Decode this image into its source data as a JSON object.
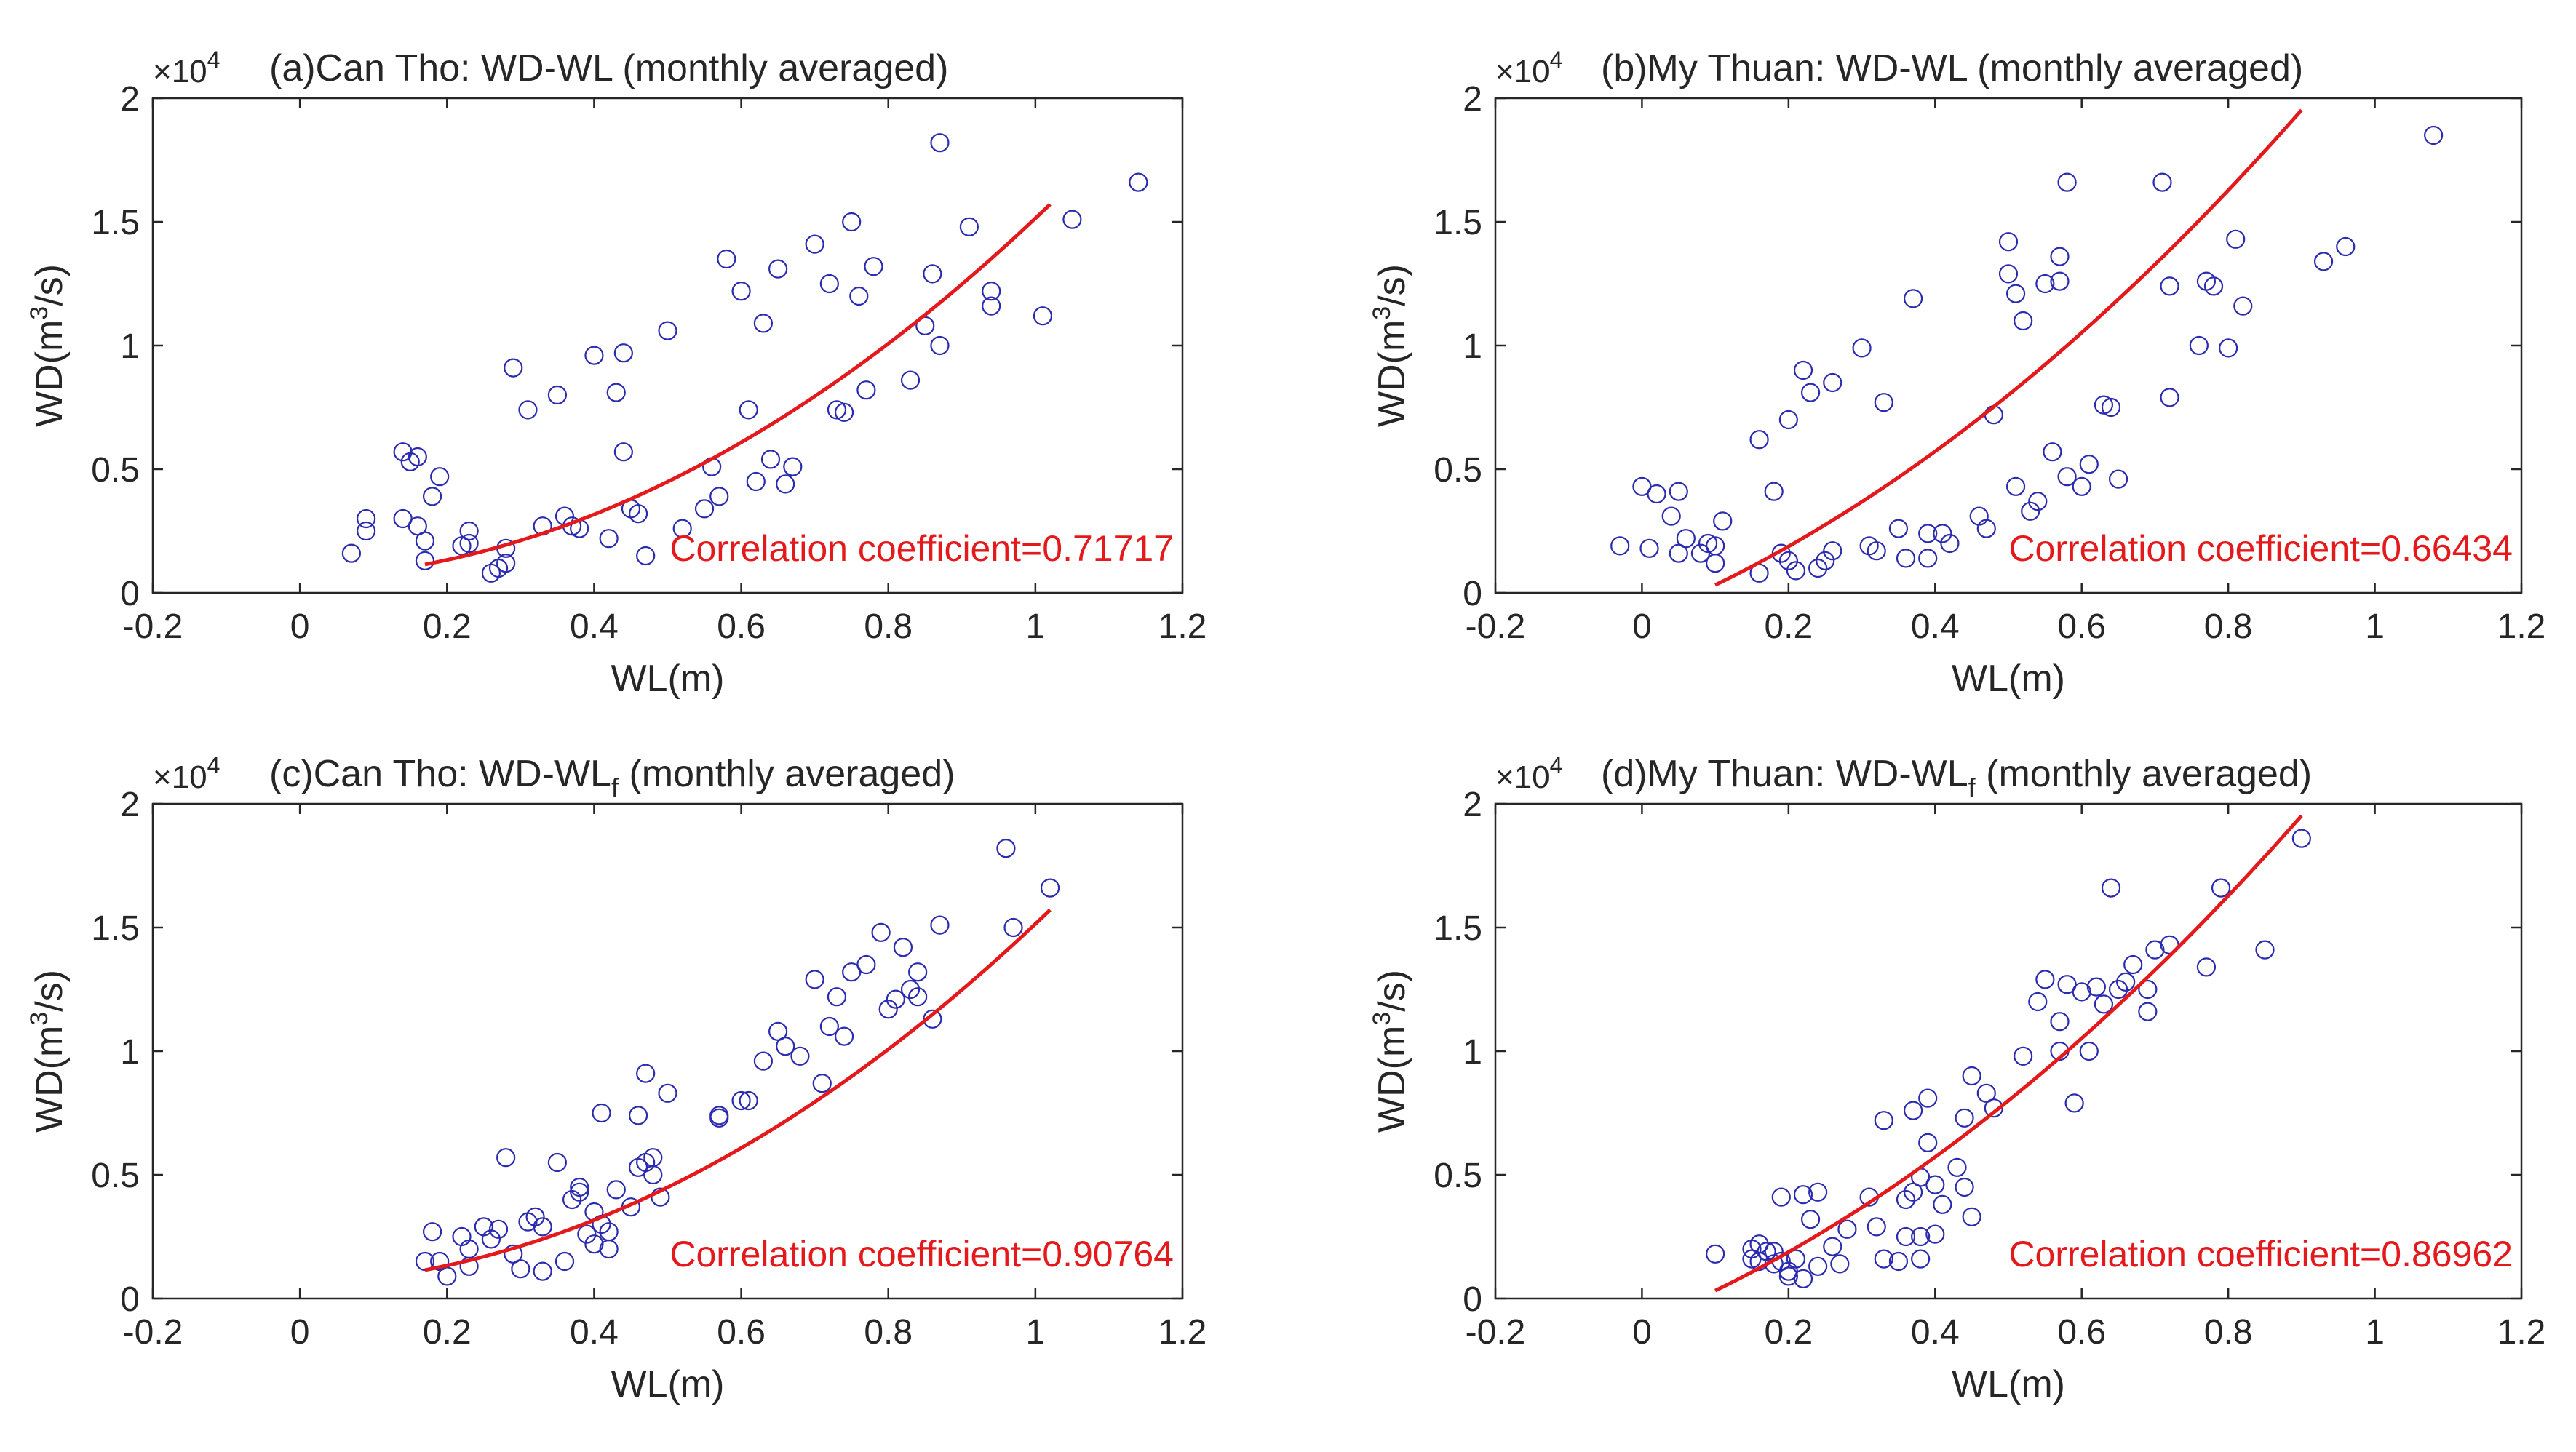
{
  "colors": {
    "marker": "#2b2bb0",
    "fit": "#e3191c",
    "axis": "#262626"
  },
  "chart_data": [
    {
      "type": "scatter",
      "title_text": "(a)Can Tho: WD-WL (monthly averaged)",
      "title_subscript": "",
      "title_after": "",
      "xlabel": "WL(m)",
      "ylabel_prefix": "WD(m",
      "ylabel_sup": "3",
      "ylabel_suffix": "/s)",
      "multiplier_base": "×10",
      "multiplier_exp": "4",
      "xlim": [
        -0.2,
        1.2
      ],
      "ylim": [
        0,
        2
      ],
      "xticks": [
        "-0.2",
        "0",
        "0.2",
        "0.4",
        "0.6",
        "0.8",
        "1",
        "1.2"
      ],
      "yticks": [
        "0",
        "0.5",
        "1",
        "1.5",
        "2"
      ],
      "correlation_label": "Correlation coefficient=0.71717",
      "points": [
        [
          0.07,
          0.16
        ],
        [
          0.09,
          0.25
        ],
        [
          0.09,
          0.3
        ],
        [
          0.14,
          0.3
        ],
        [
          0.14,
          0.57
        ],
        [
          0.15,
          0.53
        ],
        [
          0.16,
          0.55
        ],
        [
          0.16,
          0.27
        ],
        [
          0.17,
          0.21
        ],
        [
          0.17,
          0.13
        ],
        [
          0.18,
          0.39
        ],
        [
          0.19,
          0.47
        ],
        [
          0.22,
          0.19
        ],
        [
          0.23,
          0.25
        ],
        [
          0.23,
          0.2
        ],
        [
          0.26,
          0.08
        ],
        [
          0.27,
          0.1
        ],
        [
          0.28,
          0.12
        ],
        [
          0.28,
          0.18
        ],
        [
          0.29,
          0.91
        ],
        [
          0.31,
          0.74
        ],
        [
          0.33,
          0.27
        ],
        [
          0.35,
          0.8
        ],
        [
          0.36,
          0.31
        ],
        [
          0.37,
          0.27
        ],
        [
          0.38,
          0.26
        ],
        [
          0.4,
          0.96
        ],
        [
          0.42,
          0.22
        ],
        [
          0.43,
          0.81
        ],
        [
          0.44,
          0.97
        ],
        [
          0.44,
          0.57
        ],
        [
          0.45,
          0.34
        ],
        [
          0.46,
          0.32
        ],
        [
          0.47,
          0.15
        ],
        [
          0.5,
          1.06
        ],
        [
          0.52,
          0.26
        ],
        [
          0.55,
          0.34
        ],
        [
          0.56,
          0.51
        ],
        [
          0.57,
          0.39
        ],
        [
          0.58,
          1.35
        ],
        [
          0.6,
          1.22
        ],
        [
          0.61,
          0.74
        ],
        [
          0.62,
          0.45
        ],
        [
          0.63,
          1.09
        ],
        [
          0.64,
          0.54
        ],
        [
          0.65,
          1.31
        ],
        [
          0.66,
          0.44
        ],
        [
          0.67,
          0.51
        ],
        [
          0.7,
          1.41
        ],
        [
          0.72,
          1.25
        ],
        [
          0.73,
          0.74
        ],
        [
          0.74,
          0.73
        ],
        [
          0.75,
          1.5
        ],
        [
          0.76,
          1.2
        ],
        [
          0.77,
          0.82
        ],
        [
          0.78,
          1.32
        ],
        [
          0.83,
          0.86
        ],
        [
          0.85,
          1.08
        ],
        [
          0.86,
          1.29
        ],
        [
          0.87,
          1.82
        ],
        [
          0.87,
          1.0
        ],
        [
          0.91,
          1.48
        ],
        [
          0.94,
          1.22
        ],
        [
          0.94,
          1.16
        ],
        [
          1.01,
          1.12
        ],
        [
          1.05,
          1.51
        ],
        [
          1.14,
          1.66
        ]
      ],
      "fit_x": [
        0.17,
        1.02
      ],
      "fit_coeffs": [
        1.3467,
        0.1106,
        0.0573
      ]
    },
    {
      "type": "scatter",
      "title_text": "(b)My Thuan: WD-WL (monthly averaged)",
      "title_subscript": "",
      "title_after": "",
      "xlabel": "WL(m)",
      "ylabel_prefix": "WD(m",
      "ylabel_sup": "3",
      "ylabel_suffix": "/s)",
      "multiplier_base": "×10",
      "multiplier_exp": "4",
      "xlim": [
        -0.2,
        1.2
      ],
      "ylim": [
        0,
        2
      ],
      "xticks": [
        "-0.2",
        "0",
        "0.2",
        "0.4",
        "0.6",
        "0.8",
        "1",
        "1.2"
      ],
      "yticks": [
        "0",
        "0.5",
        "1",
        "1.5",
        "2"
      ],
      "correlation_label": "Correlation coefficient=0.66434",
      "points": [
        [
          -0.03,
          0.19
        ],
        [
          0.0,
          0.43
        ],
        [
          0.01,
          0.18
        ],
        [
          0.02,
          0.4
        ],
        [
          0.04,
          0.31
        ],
        [
          0.05,
          0.41
        ],
        [
          0.05,
          0.16
        ],
        [
          0.06,
          0.22
        ],
        [
          0.08,
          0.16
        ],
        [
          0.09,
          0.2
        ],
        [
          0.1,
          0.12
        ],
        [
          0.1,
          0.19
        ],
        [
          0.11,
          0.29
        ],
        [
          0.16,
          0.62
        ],
        [
          0.16,
          0.08
        ],
        [
          0.18,
          0.41
        ],
        [
          0.19,
          0.16
        ],
        [
          0.2,
          0.13
        ],
        [
          0.2,
          0.7
        ],
        [
          0.21,
          0.09
        ],
        [
          0.22,
          0.9
        ],
        [
          0.23,
          0.81
        ],
        [
          0.24,
          0.1
        ],
        [
          0.25,
          0.13
        ],
        [
          0.26,
          0.85
        ],
        [
          0.26,
          0.17
        ],
        [
          0.3,
          0.99
        ],
        [
          0.31,
          0.19
        ],
        [
          0.32,
          0.17
        ],
        [
          0.33,
          0.77
        ],
        [
          0.35,
          0.26
        ],
        [
          0.36,
          0.14
        ],
        [
          0.37,
          1.19
        ],
        [
          0.39,
          0.24
        ],
        [
          0.39,
          0.14
        ],
        [
          0.41,
          0.24
        ],
        [
          0.42,
          0.2
        ],
        [
          0.46,
          0.31
        ],
        [
          0.47,
          0.26
        ],
        [
          0.48,
          0.72
        ],
        [
          0.5,
          1.42
        ],
        [
          0.5,
          1.29
        ],
        [
          0.51,
          1.21
        ],
        [
          0.51,
          0.43
        ],
        [
          0.52,
          1.1
        ],
        [
          0.53,
          0.33
        ],
        [
          0.54,
          0.37
        ],
        [
          0.55,
          1.25
        ],
        [
          0.56,
          0.57
        ],
        [
          0.57,
          1.36
        ],
        [
          0.57,
          1.26
        ],
        [
          0.58,
          1.66
        ],
        [
          0.58,
          0.47
        ],
        [
          0.6,
          0.43
        ],
        [
          0.61,
          0.52
        ],
        [
          0.63,
          0.76
        ],
        [
          0.64,
          0.75
        ],
        [
          0.65,
          0.46
        ],
        [
          0.71,
          1.66
        ],
        [
          0.72,
          1.24
        ],
        [
          0.72,
          0.79
        ],
        [
          0.76,
          1.0
        ],
        [
          0.77,
          1.26
        ],
        [
          0.78,
          1.24
        ],
        [
          0.8,
          0.99
        ],
        [
          0.81,
          1.43
        ],
        [
          0.82,
          1.16
        ],
        [
          0.93,
          1.34
        ],
        [
          0.96,
          1.4
        ],
        [
          1.08,
          1.85
        ]
      ],
      "fit_x": [
        0.1,
        0.9
      ],
      "fit_coeffs": [
        1.2,
        1.2,
        -0.1
      ]
    },
    {
      "type": "scatter",
      "title_text": "(c)Can Tho: WD-WL",
      "title_subscript": "f",
      "title_after": " (monthly averaged)",
      "xlabel": "WL(m)",
      "ylabel_prefix": "WD(m",
      "ylabel_sup": "3",
      "ylabel_suffix": "/s)",
      "multiplier_base": "×10",
      "multiplier_exp": "4",
      "xlim": [
        -0.2,
        1.2
      ],
      "ylim": [
        0,
        2
      ],
      "xticks": [
        "-0.2",
        "0",
        "0.2",
        "0.4",
        "0.6",
        "0.8",
        "1",
        "1.2"
      ],
      "yticks": [
        "0",
        "0.5",
        "1",
        "1.5",
        "2"
      ],
      "correlation_label": "Correlation coefficient=0.90764",
      "points": [
        [
          0.17,
          0.15
        ],
        [
          0.18,
          0.27
        ],
        [
          0.19,
          0.15
        ],
        [
          0.2,
          0.09
        ],
        [
          0.22,
          0.25
        ],
        [
          0.23,
          0.13
        ],
        [
          0.23,
          0.2
        ],
        [
          0.25,
          0.29
        ],
        [
          0.26,
          0.24
        ],
        [
          0.27,
          0.28
        ],
        [
          0.28,
          0.57
        ],
        [
          0.29,
          0.18
        ],
        [
          0.3,
          0.12
        ],
        [
          0.31,
          0.31
        ],
        [
          0.32,
          0.33
        ],
        [
          0.33,
          0.29
        ],
        [
          0.33,
          0.11
        ],
        [
          0.35,
          0.55
        ],
        [
          0.36,
          0.15
        ],
        [
          0.37,
          0.4
        ],
        [
          0.38,
          0.43
        ],
        [
          0.38,
          0.45
        ],
        [
          0.39,
          0.26
        ],
        [
          0.4,
          0.22
        ],
        [
          0.4,
          0.35
        ],
        [
          0.41,
          0.75
        ],
        [
          0.41,
          0.3
        ],
        [
          0.42,
          0.27
        ],
        [
          0.42,
          0.2
        ],
        [
          0.43,
          0.44
        ],
        [
          0.45,
          0.37
        ],
        [
          0.46,
          0.74
        ],
        [
          0.46,
          0.53
        ],
        [
          0.47,
          0.91
        ],
        [
          0.47,
          0.55
        ],
        [
          0.48,
          0.57
        ],
        [
          0.48,
          0.5
        ],
        [
          0.49,
          0.41
        ],
        [
          0.5,
          0.83
        ],
        [
          0.57,
          0.73
        ],
        [
          0.57,
          0.74
        ],
        [
          0.6,
          0.8
        ],
        [
          0.61,
          0.8
        ],
        [
          0.63,
          0.96
        ],
        [
          0.65,
          1.08
        ],
        [
          0.66,
          1.02
        ],
        [
          0.68,
          0.98
        ],
        [
          0.7,
          1.29
        ],
        [
          0.71,
          0.87
        ],
        [
          0.72,
          1.1
        ],
        [
          0.73,
          1.22
        ],
        [
          0.74,
          1.06
        ],
        [
          0.75,
          1.32
        ],
        [
          0.77,
          1.35
        ],
        [
          0.79,
          1.48
        ],
        [
          0.8,
          1.17
        ],
        [
          0.81,
          1.21
        ],
        [
          0.82,
          1.42
        ],
        [
          0.83,
          1.25
        ],
        [
          0.84,
          1.32
        ],
        [
          0.84,
          1.22
        ],
        [
          0.86,
          1.13
        ],
        [
          0.87,
          1.51
        ],
        [
          0.96,
          1.82
        ],
        [
          0.97,
          1.5
        ],
        [
          1.02,
          1.66
        ]
      ],
      "fit_x": [
        0.17,
        1.02
      ],
      "fit_coeffs": [
        1.3467,
        0.1106,
        0.0573
      ]
    },
    {
      "type": "scatter",
      "title_text": "(d)My Thuan: WD-WL",
      "title_subscript": "f",
      "title_after": " (monthly averaged)",
      "xlabel": "WL(m)",
      "ylabel_prefix": "WD(m",
      "ylabel_sup": "3",
      "ylabel_suffix": "/s)",
      "multiplier_base": "×10",
      "multiplier_exp": "4",
      "xlim": [
        -0.2,
        1.2
      ],
      "ylim": [
        0,
        2
      ],
      "xticks": [
        "-0.2",
        "0",
        "0.2",
        "0.4",
        "0.6",
        "0.8",
        "1",
        "1.2"
      ],
      "yticks": [
        "0",
        "0.5",
        "1",
        "1.5",
        "2"
      ],
      "correlation_label": "Correlation coefficient=0.86962",
      "points": [
        [
          0.1,
          0.18
        ],
        [
          0.15,
          0.16
        ],
        [
          0.15,
          0.2
        ],
        [
          0.16,
          0.15
        ],
        [
          0.16,
          0.22
        ],
        [
          0.17,
          0.19
        ],
        [
          0.18,
          0.14
        ],
        [
          0.18,
          0.19
        ],
        [
          0.19,
          0.41
        ],
        [
          0.19,
          0.15
        ],
        [
          0.2,
          0.11
        ],
        [
          0.2,
          0.09
        ],
        [
          0.21,
          0.16
        ],
        [
          0.22,
          0.42
        ],
        [
          0.22,
          0.08
        ],
        [
          0.23,
          0.32
        ],
        [
          0.24,
          0.43
        ],
        [
          0.24,
          0.13
        ],
        [
          0.26,
          0.21
        ],
        [
          0.27,
          0.14
        ],
        [
          0.28,
          0.28
        ],
        [
          0.31,
          0.41
        ],
        [
          0.32,
          0.29
        ],
        [
          0.33,
          0.72
        ],
        [
          0.33,
          0.16
        ],
        [
          0.35,
          0.15
        ],
        [
          0.36,
          0.4
        ],
        [
          0.36,
          0.25
        ],
        [
          0.37,
          0.76
        ],
        [
          0.37,
          0.43
        ],
        [
          0.38,
          0.49
        ],
        [
          0.38,
          0.25
        ],
        [
          0.38,
          0.16
        ],
        [
          0.39,
          0.81
        ],
        [
          0.39,
          0.63
        ],
        [
          0.4,
          0.46
        ],
        [
          0.4,
          0.26
        ],
        [
          0.41,
          0.38
        ],
        [
          0.43,
          0.53
        ],
        [
          0.44,
          0.73
        ],
        [
          0.44,
          0.45
        ],
        [
          0.45,
          0.9
        ],
        [
          0.45,
          0.33
        ],
        [
          0.47,
          0.83
        ],
        [
          0.48,
          0.77
        ],
        [
          0.52,
          0.98
        ],
        [
          0.54,
          1.2
        ],
        [
          0.55,
          1.29
        ],
        [
          0.57,
          1.0
        ],
        [
          0.57,
          1.12
        ],
        [
          0.58,
          1.27
        ],
        [
          0.59,
          0.79
        ],
        [
          0.6,
          1.24
        ],
        [
          0.61,
          1.0
        ],
        [
          0.62,
          1.26
        ],
        [
          0.63,
          1.19
        ],
        [
          0.64,
          1.66
        ],
        [
          0.65,
          1.25
        ],
        [
          0.66,
          1.28
        ],
        [
          0.67,
          1.35
        ],
        [
          0.69,
          1.16
        ],
        [
          0.69,
          1.25
        ],
        [
          0.7,
          1.41
        ],
        [
          0.72,
          1.43
        ],
        [
          0.77,
          1.34
        ],
        [
          0.79,
          1.66
        ],
        [
          0.85,
          1.41
        ],
        [
          0.9,
          1.86
        ]
      ],
      "fit_x": [
        0.1,
        0.9
      ],
      "fit_coeffs": [
        1.2,
        1.2,
        -0.1
      ]
    }
  ]
}
